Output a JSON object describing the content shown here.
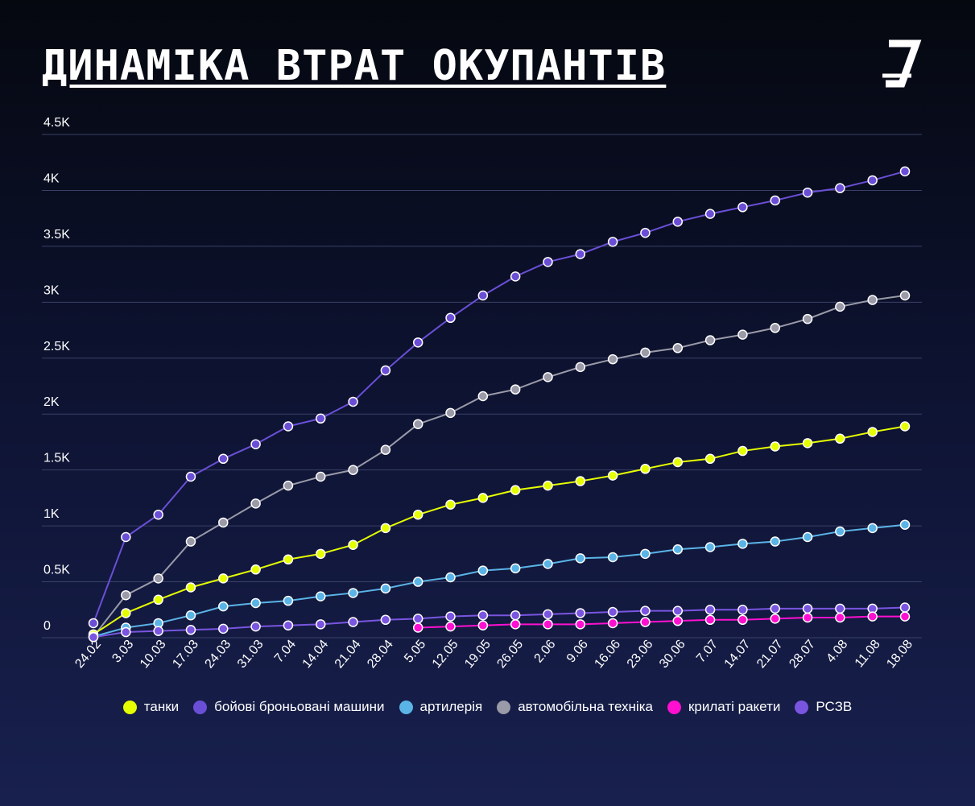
{
  "title": "ДИНАМІКА ВТРАТ ОКУПАНТІВ",
  "logo": {
    "icon": "z-strikethrough-logo-icon"
  },
  "chart_data": {
    "type": "line",
    "ylim": [
      0,
      4500
    ],
    "yticks": [
      {
        "value": 0,
        "label": "0"
      },
      {
        "value": 500,
        "label": "0.5K"
      },
      {
        "value": 1000,
        "label": "1K"
      },
      {
        "value": 1500,
        "label": "1.5K"
      },
      {
        "value": 2000,
        "label": "2K"
      },
      {
        "value": 2500,
        "label": "2.5K"
      },
      {
        "value": 3000,
        "label": "3K"
      },
      {
        "value": 3500,
        "label": "3.5K"
      },
      {
        "value": 4000,
        "label": "4K"
      },
      {
        "value": 4500,
        "label": "4.5K"
      }
    ],
    "grid": true,
    "legend_position": "bottom",
    "categories": [
      "24.02",
      "3.03",
      "10.03",
      "17.03",
      "24.03",
      "31.03",
      "7.04",
      "14.04",
      "21.04",
      "28.04",
      "5.05",
      "12.05",
      "19.05",
      "26.05",
      "2.06",
      "9.06",
      "16.06",
      "23.06",
      "30.06",
      "7.07",
      "14.07",
      "21.07",
      "28.07",
      "4.08",
      "11.08",
      "18.08"
    ],
    "series": [
      {
        "name": "бойові броньовані машини",
        "color": "#6a4fd6",
        "values": [
          130,
          900,
          1100,
          1440,
          1600,
          1730,
          1890,
          1960,
          2110,
          2390,
          2640,
          2860,
          3060,
          3230,
          3360,
          3430,
          3540,
          3620,
          3720,
          3790,
          3850,
          3910,
          3980,
          4020,
          4090,
          4170
        ]
      },
      {
        "name": "автомобільна техніка",
        "color": "#9a9aa8",
        "values": [
          10,
          380,
          530,
          860,
          1030,
          1200,
          1360,
          1440,
          1500,
          1680,
          1910,
          2010,
          2160,
          2220,
          2330,
          2420,
          2490,
          2550,
          2590,
          2660,
          2710,
          2770,
          2850,
          2960,
          3020,
          3060
        ]
      },
      {
        "name": "танки",
        "color": "#e6ff00",
        "values": [
          30,
          220,
          340,
          450,
          530,
          610,
          700,
          750,
          830,
          980,
          1100,
          1190,
          1250,
          1320,
          1360,
          1400,
          1450,
          1510,
          1570,
          1600,
          1670,
          1710,
          1740,
          1780,
          1840,
          1890
        ]
      },
      {
        "name": "артилерія",
        "color": "#5ab4e6",
        "values": [
          10,
          90,
          130,
          200,
          280,
          310,
          330,
          370,
          400,
          440,
          500,
          540,
          600,
          620,
          660,
          710,
          720,
          750,
          790,
          810,
          840,
          860,
          900,
          950,
          980,
          1010
        ]
      },
      {
        "name": "РСЗВ",
        "color": "#7a55e0",
        "values": [
          5,
          50,
          60,
          70,
          80,
          100,
          110,
          120,
          140,
          160,
          170,
          190,
          200,
          200,
          210,
          220,
          230,
          240,
          240,
          250,
          250,
          260,
          260,
          260,
          260,
          270
        ]
      },
      {
        "name": "крилаті ракети",
        "color": "#ff10d0",
        "values": [
          null,
          null,
          null,
          null,
          null,
          null,
          null,
          null,
          null,
          null,
          90,
          100,
          110,
          120,
          120,
          120,
          130,
          140,
          150,
          160,
          160,
          170,
          180,
          180,
          190,
          190
        ]
      }
    ]
  },
  "legend": [
    {
      "label": "танки",
      "color": "#e6ff00"
    },
    {
      "label": "бойові броньовані машини",
      "color": "#6a4fd6"
    },
    {
      "label": "артилерія",
      "color": "#5ab4e6"
    },
    {
      "label": "автомобільна техніка",
      "color": "#9a9aa8"
    },
    {
      "label": "крилаті ракети",
      "color": "#ff10d0"
    },
    {
      "label": "РСЗВ",
      "color": "#7a55e0"
    }
  ]
}
